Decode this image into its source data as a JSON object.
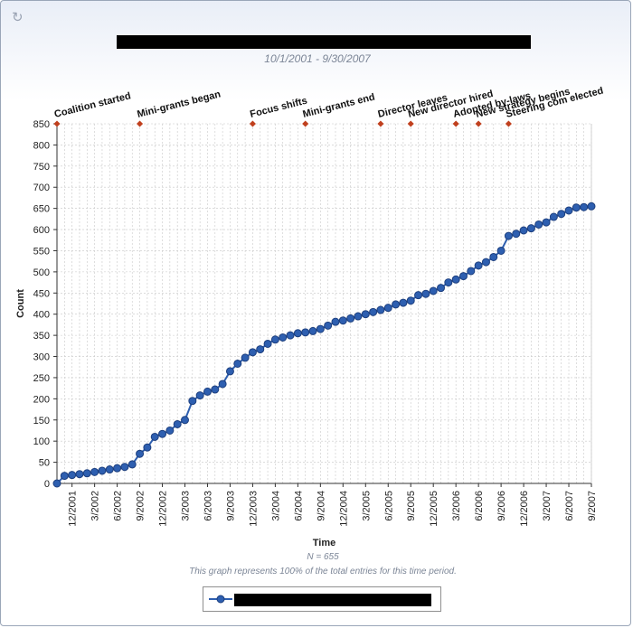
{
  "header": {
    "title_redacted": "",
    "date_range": "10/1/2001 - 9/30/2007"
  },
  "icons": {
    "corner": "refresh-icon"
  },
  "colors": {
    "series": "#2e5fb0",
    "series_dark": "#1d3f7e",
    "event_marker": "#c0401e",
    "grid": "#c8c8c8",
    "axis": "#333333"
  },
  "footer": {
    "n_label": "N = 655",
    "note": "This graph represents 100% of the total entries for this time period."
  },
  "legend": {
    "label_redacted": ""
  },
  "chart_data": {
    "type": "line",
    "title": "",
    "xlabel": "Time",
    "ylabel": "Count",
    "ylim": [
      0,
      850
    ],
    "yticks": [
      0,
      50,
      100,
      150,
      200,
      250,
      300,
      350,
      400,
      450,
      500,
      550,
      600,
      650,
      700,
      750,
      800,
      850
    ],
    "grid": true,
    "legend_position": "bottom",
    "xticks": [
      "12/2001",
      "3/2002",
      "6/2002",
      "9/2002",
      "12/2002",
      "3/2003",
      "6/2003",
      "9/2003",
      "12/2003",
      "3/2004",
      "6/2004",
      "9/2004",
      "12/2004",
      "3/2005",
      "6/2005",
      "9/2005",
      "12/2005",
      "3/2006",
      "6/2006",
      "9/2006",
      "12/2006",
      "3/2007",
      "6/2007",
      "9/2007"
    ],
    "series": [
      {
        "name": "",
        "values": [
          0,
          18,
          20,
          22,
          24,
          27,
          30,
          33,
          36,
          39,
          45,
          70,
          85,
          110,
          117,
          125,
          140,
          150,
          195,
          208,
          217,
          222,
          235,
          265,
          283,
          297,
          310,
          317,
          330,
          340,
          345,
          350,
          355,
          357,
          360,
          365,
          373,
          382,
          385,
          390,
          395,
          400,
          405,
          410,
          415,
          423,
          427,
          432,
          445,
          448,
          455,
          462,
          475,
          482,
          490,
          502,
          515,
          523,
          535,
          550,
          585,
          590,
          598,
          603,
          612,
          617,
          630,
          637,
          645,
          652,
          653,
          655
        ]
      }
    ],
    "events": [
      {
        "label": "Coalition started",
        "month_index": 0
      },
      {
        "label": "Mini-grants began",
        "month_index": 11
      },
      {
        "label": "Focus shifts",
        "month_index": 26
      },
      {
        "label": "Mini-grants end",
        "month_index": 33
      },
      {
        "label": "Director leaves",
        "month_index": 43
      },
      {
        "label": "New director hired",
        "month_index": 47
      },
      {
        "label": "Adopted by-laws",
        "month_index": 53
      },
      {
        "label": "New strategy begins",
        "month_index": 56
      },
      {
        "label": "Steering com elected",
        "month_index": 60
      }
    ]
  }
}
